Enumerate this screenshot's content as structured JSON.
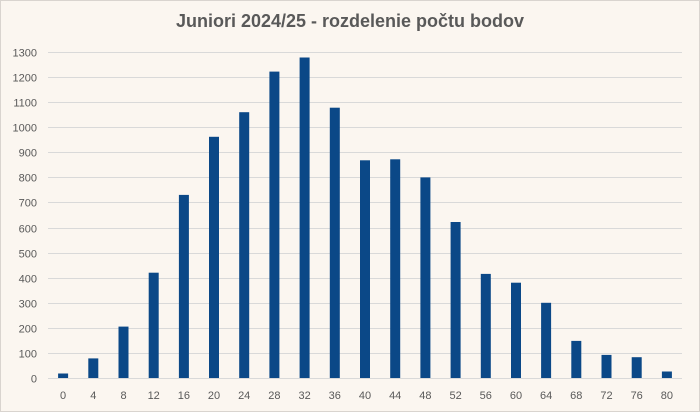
{
  "chart_data": {
    "type": "bar",
    "title": "Juniori 2024/25 - rozdelenie počtu bodov",
    "xlabel": "",
    "ylabel": "",
    "categories": [
      "0",
      "4",
      "8",
      "12",
      "16",
      "20",
      "24",
      "28",
      "32",
      "36",
      "40",
      "44",
      "48",
      "52",
      "56",
      "60",
      "64",
      "68",
      "72",
      "76",
      "80"
    ],
    "values": [
      18,
      78,
      205,
      420,
      730,
      962,
      1060,
      1222,
      1278,
      1078,
      868,
      872,
      800,
      622,
      415,
      380,
      300,
      148,
      92,
      83,
      26
    ],
    "ylim": [
      0,
      1300
    ],
    "yticks": [
      0,
      100,
      200,
      300,
      400,
      500,
      600,
      700,
      800,
      900,
      1000,
      1100,
      1200,
      1300
    ],
    "grid": true,
    "legend": "none",
    "colors": {
      "bar": "#0b4887",
      "grid": "#d9d9d9",
      "background": "#fbf6f0",
      "text": "#595959"
    }
  }
}
